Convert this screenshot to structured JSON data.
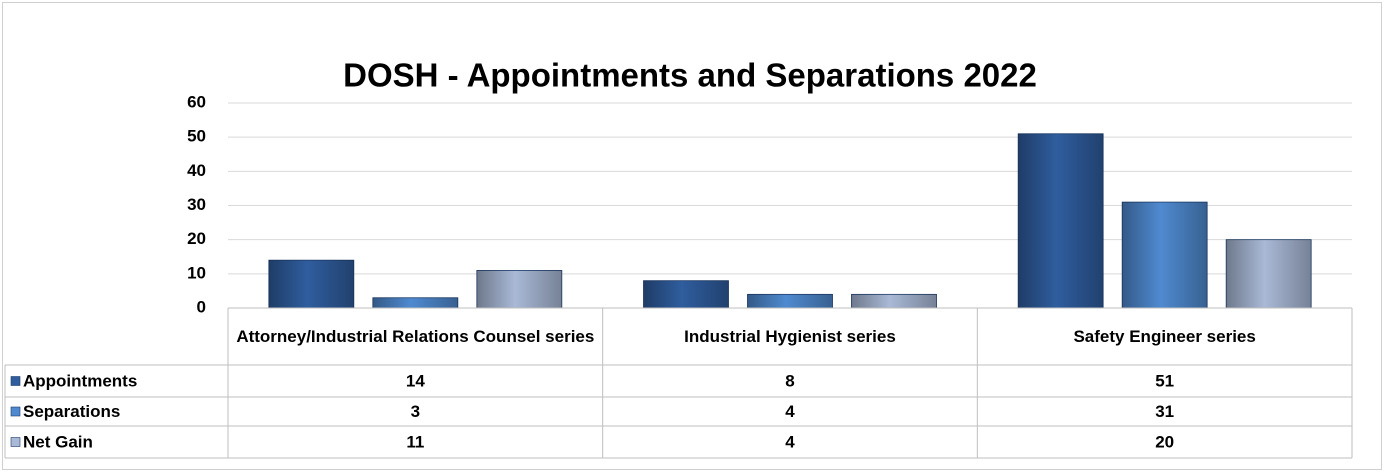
{
  "chart_data": {
    "type": "bar",
    "title": "DOSH - Appointments and Separations 2022",
    "categories": [
      "Attorney/Industrial Relations Counsel series",
      "Industrial Hygienist series",
      "Safety Engineer series"
    ],
    "series": [
      {
        "name": "Appointments",
        "color": "#2f5d9e",
        "values": [
          14,
          8,
          51
        ]
      },
      {
        "name": "Separations",
        "color": "#4f8ad0",
        "values": [
          3,
          4,
          31
        ]
      },
      {
        "name": "Net Gain",
        "color": "#a9b9d6",
        "values": [
          11,
          4,
          20
        ]
      }
    ],
    "ylim": [
      0,
      60
    ],
    "yticks": [
      0,
      10,
      20,
      30,
      40,
      50,
      60
    ],
    "grid": true,
    "data_table": true
  }
}
